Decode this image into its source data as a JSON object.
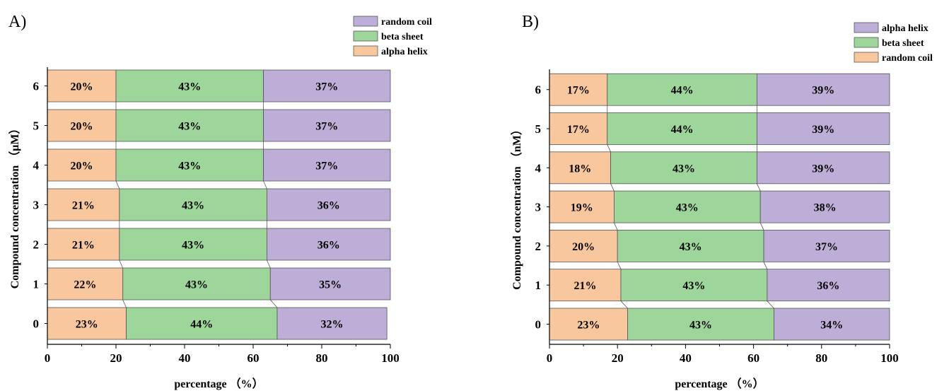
{
  "colors": {
    "alpha_helix": "#f9c79e",
    "beta_sheet": "#9dd59a",
    "random_coil": "#bcaed6"
  },
  "chart_data": [
    {
      "panel": "A)",
      "type": "bar",
      "orientation": "horizontal",
      "stacked": true,
      "categories": [
        "0",
        "1",
        "2",
        "3",
        "4",
        "5",
        "6"
      ],
      "segment_order": [
        "alpha helix",
        "beta sheet",
        "random coil"
      ],
      "series": [
        {
          "name": "alpha helix",
          "color_key": "alpha_helix",
          "values": [
            23,
            22,
            21,
            21,
            20,
            20,
            20
          ],
          "labels": [
            "23%",
            "22%",
            "21%",
            "21%",
            "20%",
            "20%",
            "20%"
          ]
        },
        {
          "name": "beta sheet",
          "color_key": "beta_sheet",
          "values": [
            44,
            43,
            43,
            43,
            43,
            43,
            43
          ],
          "labels": [
            "44%",
            "43%",
            "43%",
            "43%",
            "43%",
            "43%",
            "43%"
          ]
        },
        {
          "name": "random coil",
          "color_key": "random_coil",
          "values": [
            32,
            35,
            36,
            36,
            37,
            37,
            37
          ],
          "labels": [
            "32%",
            "35%",
            "36%",
            "36%",
            "37%",
            "37%",
            "37%"
          ]
        }
      ],
      "legend": [
        "random coil",
        "beta sheet",
        "alpha helix"
      ],
      "legend_position": "top-right",
      "xlabel": "percentage （%）",
      "ylabel": "Compound concentration （μM）",
      "xlim": [
        0,
        100
      ],
      "xticks": [
        "0",
        "20",
        "40",
        "60",
        "80",
        "100"
      ]
    },
    {
      "panel": "B)",
      "type": "bar",
      "orientation": "horizontal",
      "stacked": true,
      "categories": [
        "0",
        "1",
        "2",
        "3",
        "4",
        "5",
        "6"
      ],
      "segment_order": [
        "random coil",
        "beta sheet",
        "alpha helix"
      ],
      "series": [
        {
          "name": "random coil",
          "color_key": "alpha_helix",
          "values": [
            23,
            21,
            20,
            19,
            18,
            17,
            17
          ],
          "labels": [
            "23%",
            "21%",
            "20%",
            "19%",
            "18%",
            "17%",
            "17%"
          ]
        },
        {
          "name": "beta sheet",
          "color_key": "beta_sheet",
          "values": [
            43,
            43,
            43,
            43,
            43,
            44,
            44
          ],
          "labels": [
            "43%",
            "43%",
            "43%",
            "43%",
            "43%",
            "44%",
            "44%"
          ]
        },
        {
          "name": "alpha helix",
          "color_key": "random_coil",
          "values": [
            34,
            36,
            37,
            38,
            39,
            39,
            39
          ],
          "labels": [
            "34%",
            "36%",
            "37%",
            "38%",
            "39%",
            "39%",
            "39%"
          ]
        }
      ],
      "legend": [
        "alpha helix",
        "beta sheet",
        "random coil"
      ],
      "legend_position": "top-right",
      "xlabel": "percentage （%）",
      "ylabel": "Compound concentration （nM）",
      "xlim": [
        0,
        100
      ],
      "xticks": [
        "0",
        "20",
        "40",
        "60",
        "80",
        "100"
      ]
    }
  ]
}
